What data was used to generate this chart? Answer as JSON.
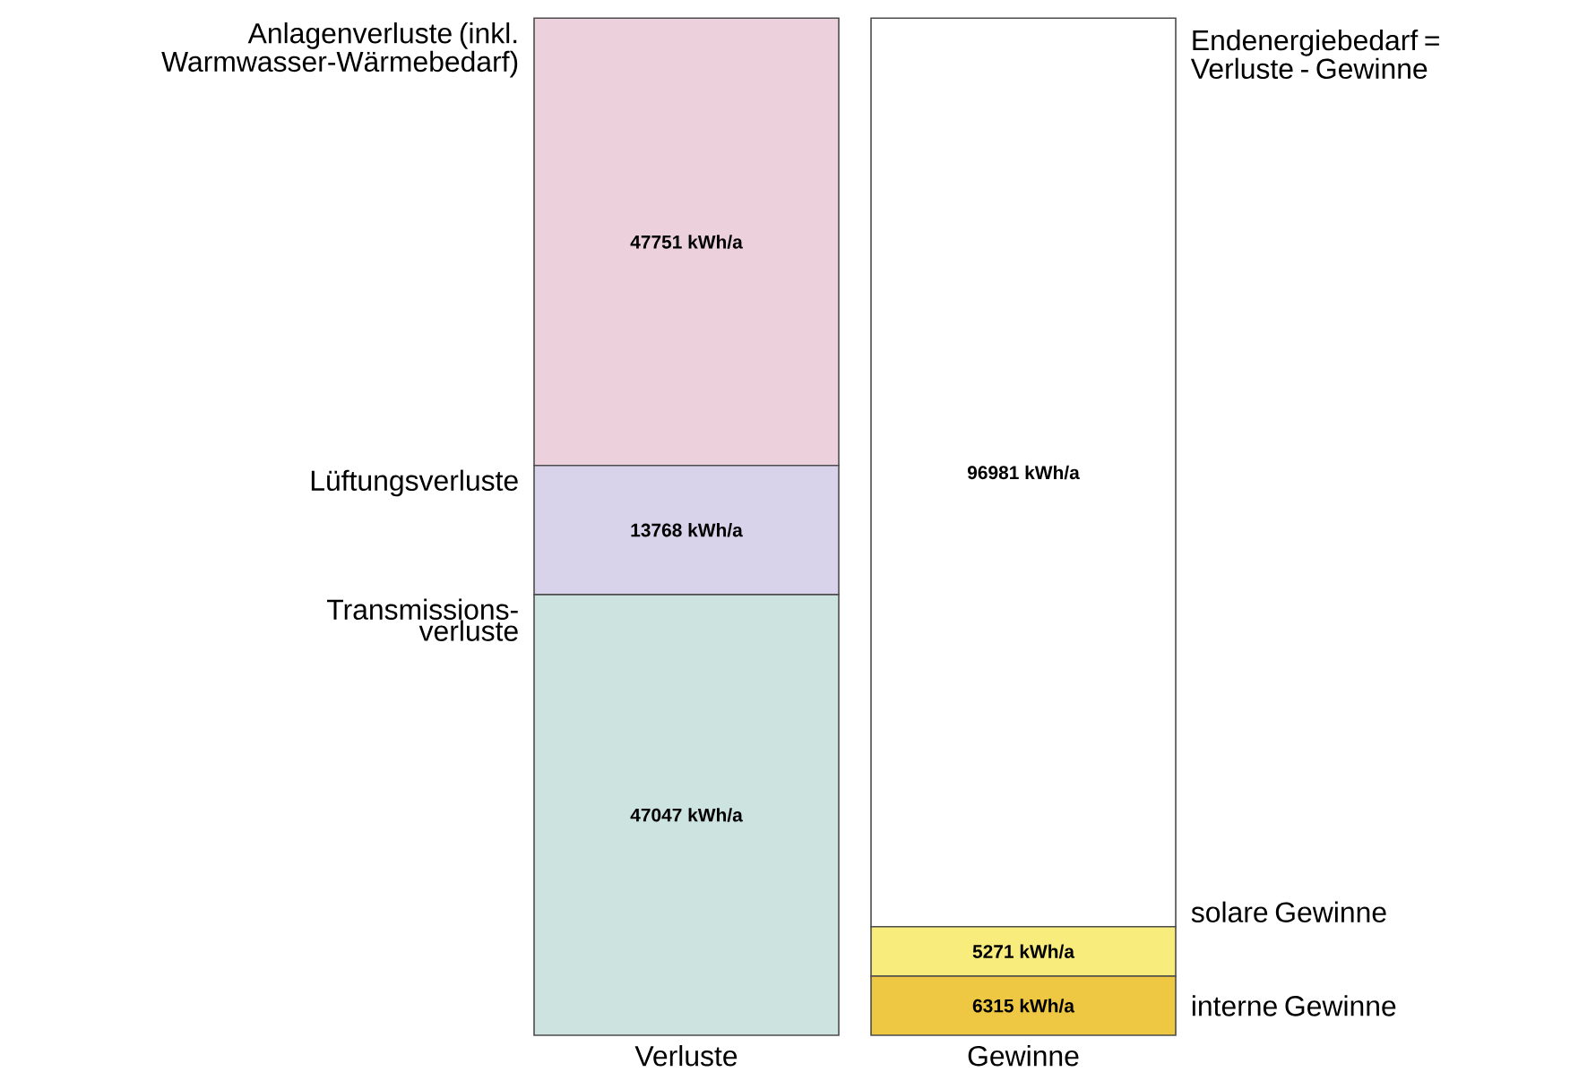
{
  "chart_data": {
    "type": "bar",
    "stacked": true,
    "categories": [
      "Verluste",
      "Gewinne"
    ],
    "series": [
      {
        "name": "Transmissions-verluste",
        "color": "#cde3df",
        "values": [
          47047,
          null
        ],
        "value_labels": [
          "47047 kWh/a",
          null
        ]
      },
      {
        "name": "Lüftungsverluste",
        "color": "#d8d3ea",
        "values": [
          13768,
          null
        ],
        "value_labels": [
          "13768 kWh/a",
          null
        ]
      },
      {
        "name": "Anlagenverluste (inkl. Warmwasser-Wärmebedarf)",
        "color": "#ecd0dc",
        "values": [
          47751,
          null
        ],
        "value_labels": [
          "47751 kWh/a",
          null
        ]
      },
      {
        "name": "interne Gewinne",
        "color": "#eec843",
        "values": [
          null,
          6315
        ],
        "value_labels": [
          null,
          "6315 kWh/a"
        ]
      },
      {
        "name": "solare Gewinne",
        "color": "#f7ec7c",
        "values": [
          null,
          5271
        ],
        "value_labels": [
          null,
          "5271 kWh/a"
        ]
      },
      {
        "name": "Endenergiebedarf = Verluste - Gewinne",
        "color": "#ffffff",
        "values": [
          null,
          96981
        ],
        "value_labels": [
          null,
          "96981 kWh/a"
        ]
      }
    ]
  }
}
